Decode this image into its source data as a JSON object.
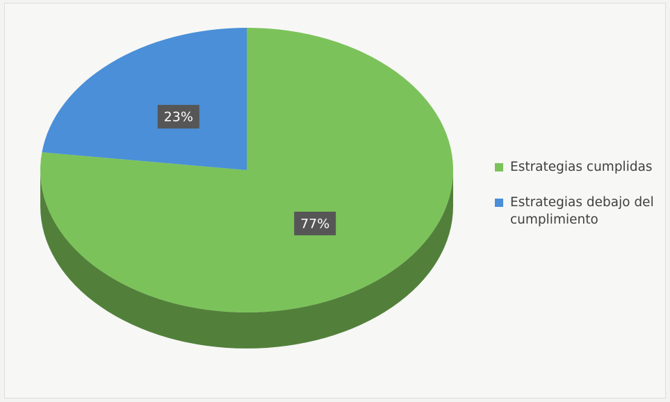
{
  "chart_data": {
    "type": "pie",
    "categories": [
      "Estrategias cumplidas",
      "Estrategias debajo del cumplimiento"
    ],
    "values": [
      77,
      23
    ],
    "value_labels": [
      "77%",
      "23%"
    ],
    "colors": [
      "#7cc25a",
      "#4a8fd8"
    ],
    "legend": "right"
  }
}
